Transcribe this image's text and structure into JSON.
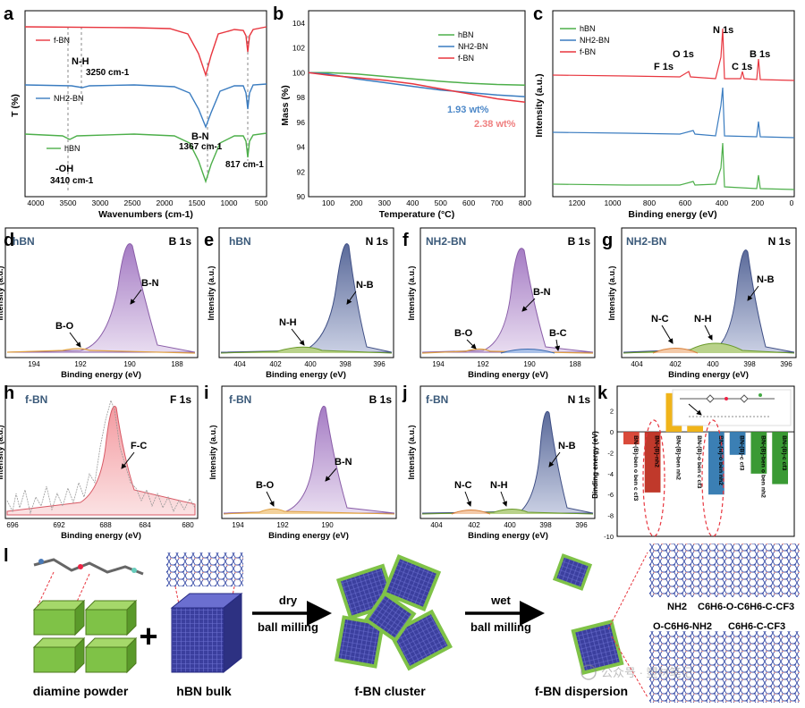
{
  "panels": {
    "a": {
      "letter": "a",
      "series_labels": [
        "f-BN",
        "NH2-BN",
        "hBN"
      ],
      "annotations": {
        "nh": "N-H",
        "nh_wn": "3250 cm-1",
        "bn": "B-N",
        "bn_wn": "1367 cm-1",
        "wn817": "817 cm-1",
        "oh": "-OH",
        "oh_wn": "3410 cm-1"
      },
      "xlabel": "Wavenumbers (cm-1)",
      "ylabel": "T (%)",
      "xticks": [
        "4000",
        "3500",
        "3000",
        "2500",
        "2000",
        "1500",
        "1000",
        "500"
      ]
    },
    "b": {
      "letter": "b",
      "legend": [
        "hBN",
        "NH2-BN",
        "f-BN"
      ],
      "colors": [
        "#4daf4a",
        "#3a7cc0",
        "#e8363f"
      ],
      "xlabel": "Temperature (°C)",
      "ylabel": "Mass (%)",
      "xticks": [
        "100",
        "200",
        "300",
        "400",
        "500",
        "600",
        "700",
        "800"
      ],
      "yticks": [
        "90",
        "92",
        "94",
        "96",
        "98",
        "100",
        "102",
        "104"
      ],
      "loss1": "1.93 wt%",
      "loss2": "2.38 wt%"
    },
    "c": {
      "letter": "c",
      "legend": [
        "hBN",
        "NH2-BN",
        "f-BN"
      ],
      "peaks": [
        "N 1s",
        "O 1s",
        "F 1s",
        "C 1s",
        "B 1s"
      ],
      "xlabel": "Binding energy (eV)",
      "ylabel": "Intensity (a.u.)",
      "xticks": [
        "1200",
        "1000",
        "800",
        "600",
        "400",
        "200",
        "0"
      ]
    },
    "xps": [
      {
        "letter": "d",
        "sample": "hBN",
        "core": "B 1s",
        "ticks": [
          "194",
          "192",
          "190",
          "188"
        ],
        "labels": [
          "B-N",
          "B-O"
        ]
      },
      {
        "letter": "e",
        "sample": "hBN",
        "core": "N 1s",
        "ticks": [
          "404",
          "402",
          "400",
          "398",
          "396"
        ],
        "labels": [
          "N-B",
          "N-H"
        ]
      },
      {
        "letter": "f",
        "sample": "NH2-BN",
        "core": "B 1s",
        "ticks": [
          "194",
          "192",
          "190",
          "188"
        ],
        "labels": [
          "B-N",
          "B-O",
          "B-C"
        ]
      },
      {
        "letter": "g",
        "sample": "NH2-BN",
        "core": "N 1s",
        "ticks": [
          "404",
          "402",
          "400",
          "398",
          "396"
        ],
        "labels": [
          "N-B",
          "N-H",
          "N-C"
        ]
      },
      {
        "letter": "h",
        "sample": "f-BN",
        "core": "F 1s",
        "ticks": [
          "696",
          "692",
          "688",
          "684",
          "680"
        ],
        "labels": [
          "F-C"
        ]
      },
      {
        "letter": "i",
        "sample": "f-BN",
        "core": "B 1s",
        "ticks": [
          "194",
          "192",
          "190"
        ],
        "labels": [
          "B-N",
          "B-O"
        ]
      },
      {
        "letter": "j",
        "sample": "f-BN",
        "core": "N 1s",
        "ticks": [
          "404",
          "402",
          "400",
          "398",
          "396"
        ],
        "labels": [
          "N-B",
          "N-H",
          "N-C"
        ]
      }
    ],
    "xps_xlabel": "Binding energy (eV)",
    "xps_ylabel": "Intensity (a.u.)",
    "k": {
      "letter": "k",
      "ylabel": "Binding energy (eV)",
      "yticks": [
        "2",
        "0",
        "-2",
        "-4",
        "-6",
        "-8",
        "-10"
      ],
      "bar_labels": [
        "BN-(B)-ben o ben c cf3",
        "BN-(B)-nh2",
        "BN-(B)-ben nh2",
        "BN-(B)-o ben c cf3",
        "BN-(N)-o ben nh2",
        "BN-(B)-c cf3",
        "BN-(B)-ben o ben nh2",
        "BN-(B)-c cf3"
      ],
      "values": [
        -1.2,
        -5.8,
        3.7,
        1.2,
        -6.0,
        -2.2,
        -4.0,
        -5.0
      ],
      "colors": [
        "#d94a3a",
        "#c0392b",
        "#f0b41a",
        "#f0b41a",
        "#3b7fb4",
        "#3b7fb4",
        "#3a9a34",
        "#3a9a34"
      ]
    },
    "l": {
      "letter": "l",
      "diamine": "diamine powder",
      "hbn_bulk": "hBN bulk",
      "dry1": "dry",
      "dry2": "ball milling",
      "wet1": "wet",
      "wet2": "ball milling",
      "cluster": "f-BN cluster",
      "dispersion": "f-BN dispersion",
      "nh2": "NH2",
      "chain1": "C6H6-O-C6H6-C-CF3",
      "chain2": "O-C6H6-NH2",
      "chain3": "C6H6-C-CF3"
    }
  },
  "watermark": "公众号 · 塑材笔记"
}
